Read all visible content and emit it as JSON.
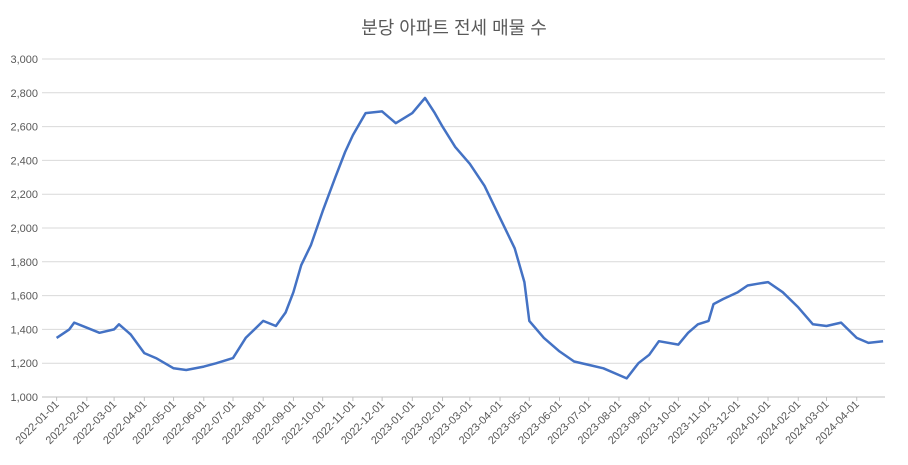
{
  "chart_data": {
    "type": "line",
    "title": "분당 아파트 전세 매물 수",
    "x": [
      "2022-01-01",
      "2022-01-14",
      "2022-01-19",
      "2022-02-01",
      "2022-02-14",
      "2022-03-01",
      "2022-03-06",
      "2022-03-18",
      "2022-04-01",
      "2022-04-13",
      "2022-05-01",
      "2022-05-14",
      "2022-06-01",
      "2022-06-14",
      "2022-07-01",
      "2022-07-14",
      "2022-08-01",
      "2022-08-14",
      "2022-08-24",
      "2022-09-01",
      "2022-09-09",
      "2022-09-19",
      "2022-10-01",
      "2022-10-14",
      "2022-10-24",
      "2022-11-01",
      "2022-11-14",
      "2022-12-01",
      "2022-12-15",
      "2023-01-01",
      "2023-01-14",
      "2023-01-24",
      "2023-02-01",
      "2023-02-14",
      "2023-03-01",
      "2023-03-16",
      "2023-04-01",
      "2023-04-16",
      "2023-04-26",
      "2023-05-01",
      "2023-05-16",
      "2023-06-01",
      "2023-06-16",
      "2023-07-01",
      "2023-07-16",
      "2023-08-01",
      "2023-08-09",
      "2023-08-21",
      "2023-09-01",
      "2023-09-11",
      "2023-10-01",
      "2023-10-11",
      "2023-10-21",
      "2023-11-01",
      "2023-11-06",
      "2023-11-16",
      "2023-12-01",
      "2023-12-11",
      "2023-12-21",
      "2024-01-01",
      "2024-01-16",
      "2024-02-01",
      "2024-02-16",
      "2024-03-01",
      "2024-03-16",
      "2024-04-01",
      "2024-04-13",
      "2024-04-28"
    ],
    "series": [
      {
        "name": "매물 수",
        "color": "#4472c4",
        "values": [
          1350,
          1400,
          1440,
          1410,
          1380,
          1400,
          1430,
          1370,
          1260,
          1230,
          1170,
          1160,
          1180,
          1200,
          1230,
          1350,
          1450,
          1420,
          1500,
          1620,
          1780,
          1900,
          2100,
          2300,
          2450,
          2550,
          2680,
          2690,
          2620,
          2680,
          2770,
          2680,
          2600,
          2480,
          2380,
          2250,
          2060,
          1880,
          1680,
          1450,
          1350,
          1270,
          1210,
          1190,
          1170,
          1130,
          1110,
          1200,
          1250,
          1330,
          1310,
          1380,
          1430,
          1450,
          1550,
          1580,
          1620,
          1660,
          1670,
          1680,
          1620,
          1530,
          1430,
          1420,
          1440,
          1350,
          1320,
          1330
        ]
      }
    ],
    "xlim": [
      "2021-12-17",
      "2024-04-30"
    ],
    "xticks": [
      "2022-01-01",
      "2022-02-01",
      "2022-03-01",
      "2022-04-01",
      "2022-05-01",
      "2022-06-01",
      "2022-07-01",
      "2022-08-01",
      "2022-09-01",
      "2022-10-01",
      "2022-11-01",
      "2022-12-01",
      "2023-01-01",
      "2023-02-01",
      "2023-03-01",
      "2023-04-01",
      "2023-05-01",
      "2023-06-01",
      "2023-07-01",
      "2023-08-01",
      "2023-09-01",
      "2023-10-01",
      "2023-11-01",
      "2023-12-01",
      "2024-01-01",
      "2024-02-01",
      "2024-03-01",
      "2024-04-01"
    ],
    "ylim": [
      1000,
      3000
    ],
    "yticks": [
      {
        "value": 1000,
        "label": "1,000"
      },
      {
        "value": 1200,
        "label": "1,200"
      },
      {
        "value": 1400,
        "label": "1,400"
      },
      {
        "value": 1600,
        "label": "1,600"
      },
      {
        "value": 1800,
        "label": "1,800"
      },
      {
        "value": 2000,
        "label": "2,000"
      },
      {
        "value": 2200,
        "label": "2,200"
      },
      {
        "value": 2400,
        "label": "2,400"
      },
      {
        "value": 2600,
        "label": "2,600"
      },
      {
        "value": 2800,
        "label": "2,800"
      },
      {
        "value": 3000,
        "label": "3,000"
      }
    ],
    "grid": true
  }
}
